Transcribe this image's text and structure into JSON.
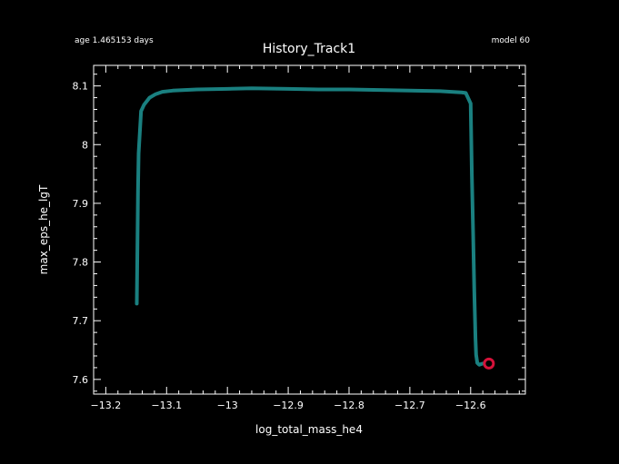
{
  "header": {
    "age_text": "age 1.465153 days",
    "model_text": "model 60"
  },
  "colors": {
    "background": "#000000",
    "foreground": "#ffffff",
    "track": "#1a8080",
    "marker": "#d6123a"
  },
  "chart_data": {
    "type": "line",
    "title": "History_Track1",
    "xlabel": "log_total_mass_he4",
    "ylabel": "max_eps_he_lgT",
    "xlim": [
      -13.22,
      -12.51
    ],
    "ylim": [
      7.575,
      8.135
    ],
    "x_ticks": [
      -13.2,
      -13.1,
      -13.0,
      -12.9,
      -12.8,
      -12.7,
      -12.6
    ],
    "x_tick_labels": [
      "−13.2",
      "−13.1",
      "−13",
      "−12.9",
      "−12.8",
      "−12.7",
      "−12.6"
    ],
    "y_ticks": [
      7.6,
      7.7,
      7.8,
      7.9,
      8.0,
      8.1
    ],
    "y_tick_labels": [
      "7.6",
      "7.7",
      "7.8",
      "7.9",
      "8",
      "8.1"
    ],
    "grid": false,
    "legend": "none",
    "series": [
      {
        "x": [
          -13.149,
          -13.148,
          -13.147,
          -13.146,
          -13.142,
          -13.137,
          -13.128,
          -13.118,
          -13.107,
          -13.09,
          -13.05,
          -13.0,
          -12.96,
          -12.9,
          -12.85,
          -12.8,
          -12.75,
          -12.7,
          -12.65,
          -12.616,
          -12.608,
          -12.6,
          -12.598,
          -12.596,
          -12.594,
          -12.592,
          -12.591,
          -12.589,
          -12.586,
          -12.58
        ],
        "y": [
          7.729,
          7.83,
          7.92,
          7.985,
          8.057,
          8.068,
          8.08,
          8.086,
          8.09,
          8.092,
          8.094,
          8.095,
          8.096,
          8.095,
          8.094,
          8.094,
          8.093,
          8.092,
          8.091,
          8.089,
          8.088,
          8.07,
          7.95,
          7.85,
          7.75,
          7.67,
          7.642,
          7.628,
          7.625,
          7.627
        ]
      }
    ],
    "current_point": {
      "x": -12.57,
      "y": 7.627
    }
  }
}
